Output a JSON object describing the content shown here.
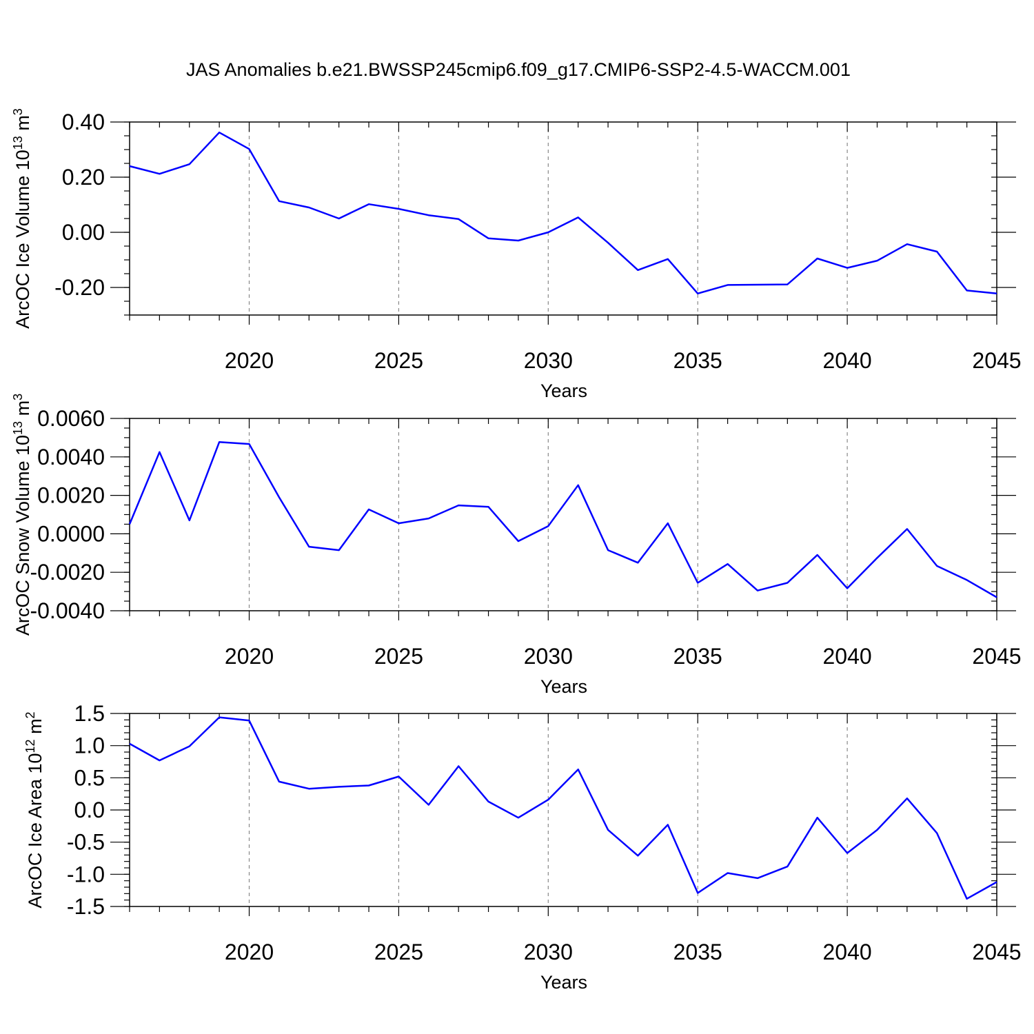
{
  "figure_title": "JAS Anomalies b.e21.BWSSP245cmip6.f09_g17.CMIP6-SSP2-4.5-WACCM.001",
  "colors": {
    "line": "#0000ff",
    "axis": "#000000",
    "grid": "#888888"
  },
  "chart_data": [
    {
      "type": "line",
      "title": "",
      "xlabel": "Years",
      "ylabel": "ArcOC Ice Volume 10",
      "ylabel_exponent": "13",
      "ylabel_unit": "m",
      "ylabel_unit_exponent": "3",
      "xlim": [
        2016,
        2045
      ],
      "ylim": [
        -0.3,
        0.4
      ],
      "grid": "vertical dashed at labeled years",
      "xticks": [
        2020,
        2025,
        2030,
        2035,
        2040,
        2045
      ],
      "xtick_labels": [
        "2020",
        "2025",
        "2030",
        "2035",
        "2040",
        "2045"
      ],
      "yticks": [
        -0.2,
        0.0,
        0.2,
        0.4
      ],
      "ytick_labels": [
        "-0.20",
        "0.00",
        "0.20",
        "0.40"
      ],
      "yminor_step": 0.05,
      "x": [
        2016,
        2017,
        2018,
        2019,
        2020,
        2021,
        2022,
        2023,
        2024,
        2025,
        2026,
        2027,
        2028,
        2029,
        2030,
        2031,
        2032,
        2033,
        2034,
        2035,
        2036,
        2037,
        2038,
        2039,
        2040,
        2041,
        2042,
        2043,
        2044,
        2045
      ],
      "y": [
        0.24,
        0.212,
        0.247,
        0.362,
        0.302,
        0.113,
        0.09,
        0.05,
        0.102,
        0.085,
        0.062,
        0.048,
        -0.022,
        -0.03,
        0.0,
        0.054,
        -0.038,
        -0.137,
        -0.097,
        -0.222,
        -0.191,
        -0.19,
        -0.189,
        -0.095,
        -0.129,
        -0.103,
        -0.043,
        -0.07,
        -0.211,
        -0.222
      ]
    },
    {
      "type": "line",
      "title": "",
      "xlabel": "Years",
      "ylabel": "ArcOC Snow Volume 10",
      "ylabel_exponent": "13",
      "ylabel_unit": "m",
      "ylabel_unit_exponent": "3",
      "xlim": [
        2016,
        2045
      ],
      "ylim": [
        -0.004,
        0.006
      ],
      "grid": "vertical dashed at labeled years",
      "xticks": [
        2020,
        2025,
        2030,
        2035,
        2040,
        2045
      ],
      "xtick_labels": [
        "2020",
        "2025",
        "2030",
        "2035",
        "2040",
        "2045"
      ],
      "yticks": [
        -0.004,
        -0.002,
        0.0,
        0.002,
        0.004,
        0.006
      ],
      "ytick_labels": [
        "-0.0040",
        "-0.0020",
        "0.0000",
        "0.0020",
        "0.0040",
        "0.0060"
      ],
      "yminor_step": 0.0005,
      "x": [
        2016,
        2017,
        2018,
        2019,
        2020,
        2021,
        2022,
        2023,
        2024,
        2025,
        2026,
        2027,
        2028,
        2029,
        2030,
        2031,
        2032,
        2033,
        2034,
        2035,
        2036,
        2037,
        2038,
        2039,
        2040,
        2041,
        2042,
        2043,
        2044,
        2045
      ],
      "y": [
        0.0005,
        0.00425,
        0.0007,
        0.00477,
        0.00467,
        0.0019,
        -0.00067,
        -0.00085,
        0.00127,
        0.00055,
        0.0008,
        0.00148,
        0.0014,
        -0.00038,
        0.0004,
        0.00253,
        -0.00085,
        -0.0015,
        0.00055,
        -0.00255,
        -0.00157,
        -0.00295,
        -0.00255,
        -0.0011,
        -0.00283,
        -0.00125,
        0.00025,
        -0.00167,
        -0.0024,
        -0.0033
      ]
    },
    {
      "type": "line",
      "title": "",
      "xlabel": "Years",
      "ylabel": "ArcOC Ice Area 10",
      "ylabel_exponent": "12",
      "ylabel_unit": "m",
      "ylabel_unit_exponent": "2",
      "xlim": [
        2016,
        2045
      ],
      "ylim": [
        -1.5,
        1.5
      ],
      "grid": "vertical dashed at labeled years",
      "xticks": [
        2020,
        2025,
        2030,
        2035,
        2040,
        2045
      ],
      "xtick_labels": [
        "2020",
        "2025",
        "2030",
        "2035",
        "2040",
        "2045"
      ],
      "yticks": [
        -1.5,
        -1.0,
        -0.5,
        0.0,
        0.5,
        1.0,
        1.5
      ],
      "ytick_labels": [
        "-1.5",
        "-1.0",
        "-0.5",
        "0.0",
        "0.5",
        "1.0",
        "1.5"
      ],
      "yminor_step": 0.1,
      "x": [
        2016,
        2017,
        2018,
        2019,
        2020,
        2021,
        2022,
        2023,
        2024,
        2025,
        2026,
        2027,
        2028,
        2029,
        2030,
        2031,
        2032,
        2033,
        2034,
        2035,
        2036,
        2037,
        2038,
        2039,
        2040,
        2041,
        2042,
        2043,
        2044,
        2045
      ],
      "y": [
        1.03,
        0.77,
        0.99,
        1.44,
        1.39,
        0.44,
        0.33,
        0.36,
        0.38,
        0.52,
        0.08,
        0.68,
        0.13,
        -0.12,
        0.16,
        0.63,
        -0.31,
        -0.71,
        -0.23,
        -1.29,
        -0.98,
        -1.06,
        -0.88,
        -0.12,
        -0.67,
        -0.31,
        0.18,
        -0.36,
        -1.38,
        -1.12
      ]
    }
  ]
}
